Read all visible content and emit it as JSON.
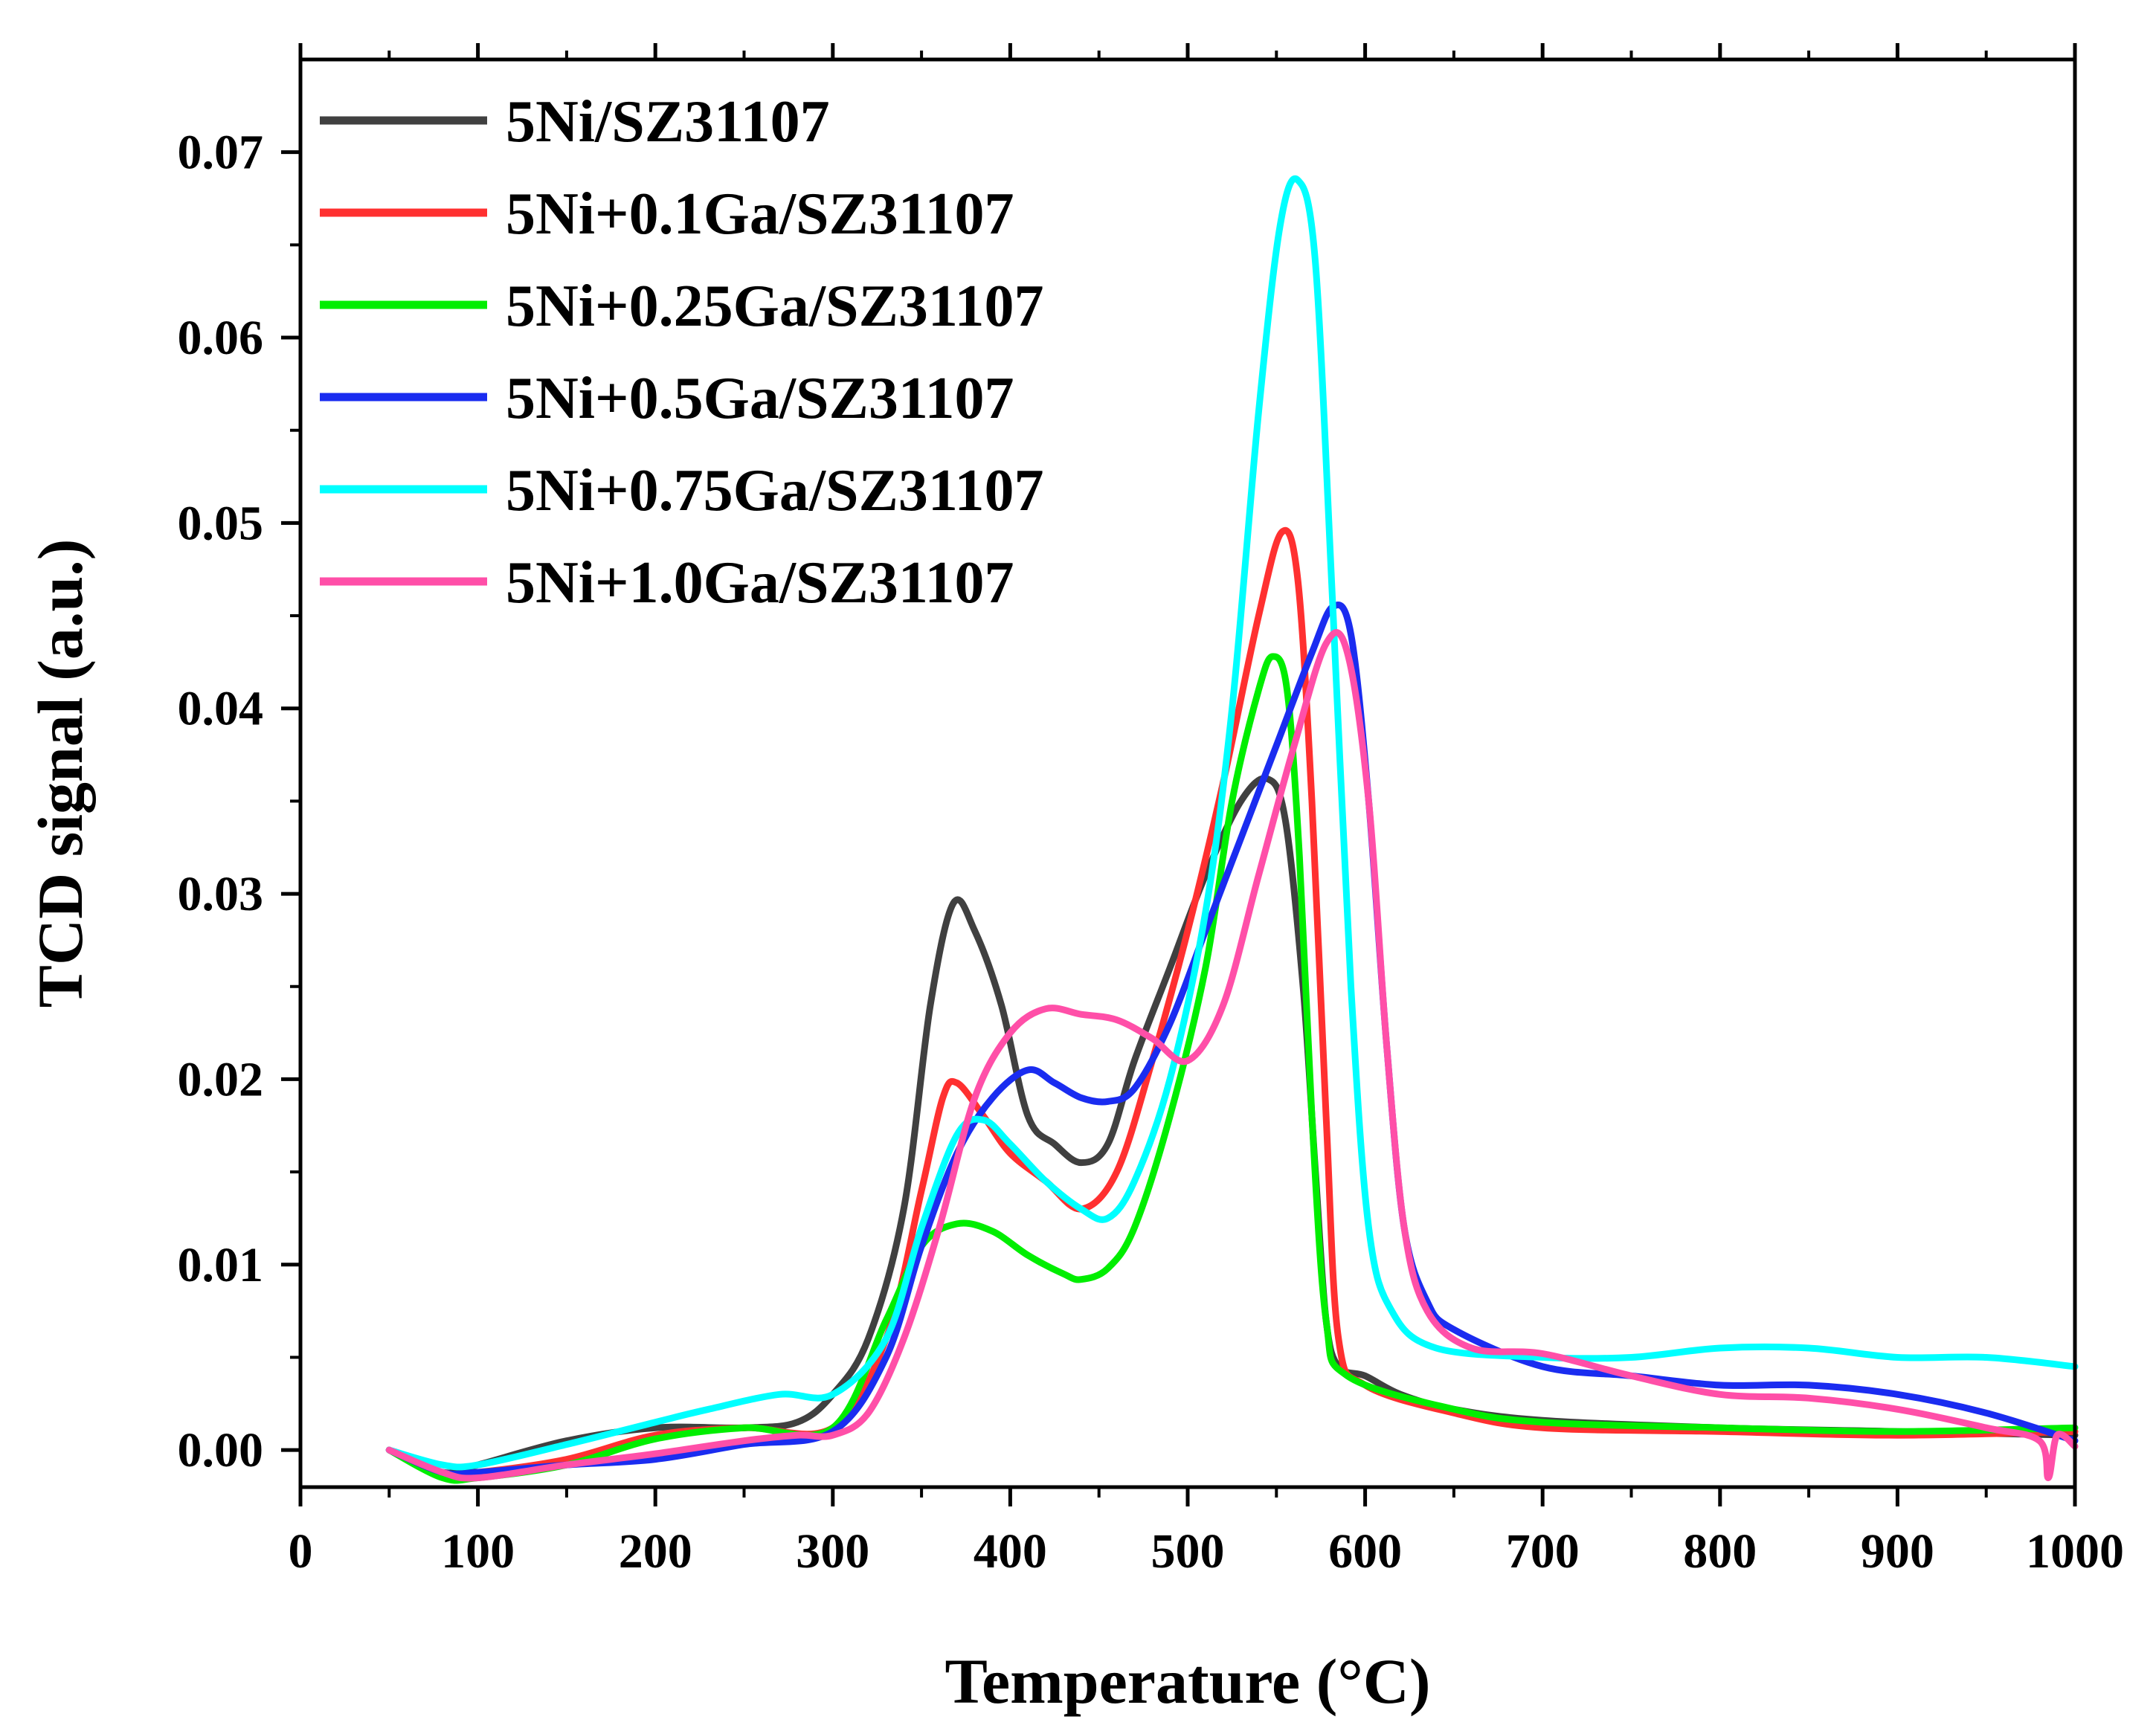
{
  "chart_data": {
    "type": "line",
    "title": "",
    "xlabel": "Temperature (°C)",
    "ylabel": "TCD signal (a.u.)",
    "xlim": [
      0,
      1000
    ],
    "ylim": [
      -0.002,
      0.075
    ],
    "xticks": [
      0,
      100,
      200,
      300,
      400,
      500,
      600,
      700,
      800,
      900,
      1000
    ],
    "xtick_labels": [
      "0",
      "100",
      "200",
      "300",
      "400",
      "500",
      "600",
      "700",
      "800",
      "900",
      "1000"
    ],
    "yticks": [
      0.0,
      0.01,
      0.02,
      0.03,
      0.04,
      0.05,
      0.06,
      0.07
    ],
    "ytick_labels": [
      "0.00",
      "0.01",
      "0.02",
      "0.03",
      "0.04",
      "0.05",
      "0.06",
      "0.07"
    ],
    "grid": false,
    "legend_position": "top-left",
    "series": [
      {
        "name": "5Ni/SZ31107",
        "color": "#404040",
        "points": [
          [
            50,
            0.0
          ],
          [
            80,
            -0.0012
          ],
          [
            100,
            -0.0008
          ],
          [
            150,
            0.0005
          ],
          [
            200,
            0.0012
          ],
          [
            250,
            0.0012
          ],
          [
            280,
            0.0015
          ],
          [
            300,
            0.003
          ],
          [
            320,
            0.006
          ],
          [
            340,
            0.013
          ],
          [
            355,
            0.024
          ],
          [
            368,
            0.0295
          ],
          [
            380,
            0.028
          ],
          [
            395,
            0.024
          ],
          [
            410,
            0.018
          ],
          [
            425,
            0.0165
          ],
          [
            440,
            0.0155
          ],
          [
            455,
            0.0165
          ],
          [
            470,
            0.021
          ],
          [
            490,
            0.026
          ],
          [
            510,
            0.031
          ],
          [
            530,
            0.035
          ],
          [
            545,
            0.0362
          ],
          [
            555,
            0.034
          ],
          [
            565,
            0.025
          ],
          [
            572,
            0.015
          ],
          [
            578,
            0.007
          ],
          [
            585,
            0.0045
          ],
          [
            600,
            0.004
          ],
          [
            620,
            0.003
          ],
          [
            650,
            0.0022
          ],
          [
            700,
            0.0016
          ],
          [
            800,
            0.0012
          ],
          [
            900,
            0.001
          ],
          [
            1000,
            0.0008
          ]
        ]
      },
      {
        "name": "5Ni+0.1Ga/SZ31107",
        "color": "#ff3030",
        "points": [
          [
            50,
            0.0
          ],
          [
            80,
            -0.0012
          ],
          [
            100,
            -0.0012
          ],
          [
            150,
            -0.0005
          ],
          [
            200,
            0.0008
          ],
          [
            250,
            0.0012
          ],
          [
            300,
            0.0012
          ],
          [
            330,
            0.006
          ],
          [
            350,
            0.014
          ],
          [
            362,
            0.019
          ],
          [
            370,
            0.0198
          ],
          [
            385,
            0.018
          ],
          [
            400,
            0.016
          ],
          [
            420,
            0.0145
          ],
          [
            440,
            0.013
          ],
          [
            460,
            0.015
          ],
          [
            480,
            0.021
          ],
          [
            500,
            0.028
          ],
          [
            520,
            0.036
          ],
          [
            540,
            0.045
          ],
          [
            553,
            0.0495
          ],
          [
            562,
            0.047
          ],
          [
            570,
            0.035
          ],
          [
            578,
            0.018
          ],
          [
            585,
            0.006
          ],
          [
            600,
            0.0035
          ],
          [
            650,
            0.002
          ],
          [
            700,
            0.0012
          ],
          [
            800,
            0.001
          ],
          [
            900,
            0.0008
          ],
          [
            1000,
            0.001
          ]
        ]
      },
      {
        "name": "5Ni+0.25Ga/SZ31107",
        "color": "#00ee00",
        "points": [
          [
            50,
            0.0
          ],
          [
            80,
            -0.0015
          ],
          [
            100,
            -0.0015
          ],
          [
            150,
            -0.0008
          ],
          [
            200,
            0.0006
          ],
          [
            250,
            0.0012
          ],
          [
            300,
            0.0012
          ],
          [
            330,
            0.007
          ],
          [
            350,
            0.011
          ],
          [
            370,
            0.0122
          ],
          [
            390,
            0.0118
          ],
          [
            410,
            0.0105
          ],
          [
            430,
            0.0095
          ],
          [
            440,
            0.0092
          ],
          [
            455,
            0.0098
          ],
          [
            470,
            0.012
          ],
          [
            490,
            0.018
          ],
          [
            510,
            0.026
          ],
          [
            525,
            0.035
          ],
          [
            540,
            0.041
          ],
          [
            548,
            0.0428
          ],
          [
            556,
            0.041
          ],
          [
            563,
            0.032
          ],
          [
            570,
            0.018
          ],
          [
            578,
            0.007
          ],
          [
            590,
            0.004
          ],
          [
            650,
            0.0022
          ],
          [
            700,
            0.0015
          ],
          [
            800,
            0.0012
          ],
          [
            900,
            0.001
          ],
          [
            1000,
            0.0012
          ]
        ]
      },
      {
        "name": "5Ni+0.5Ga/SZ31107",
        "color": "#1a2cf0",
        "points": [
          [
            50,
            0.0
          ],
          [
            80,
            -0.0012
          ],
          [
            100,
            -0.0012
          ],
          [
            150,
            -0.0008
          ],
          [
            200,
            -0.0005
          ],
          [
            250,
            0.0003
          ],
          [
            300,
            0.001
          ],
          [
            330,
            0.005
          ],
          [
            350,
            0.011
          ],
          [
            370,
            0.016
          ],
          [
            390,
            0.019
          ],
          [
            410,
            0.0205
          ],
          [
            425,
            0.0198
          ],
          [
            440,
            0.019
          ],
          [
            455,
            0.0188
          ],
          [
            470,
            0.0195
          ],
          [
            490,
            0.023
          ],
          [
            510,
            0.028
          ],
          [
            530,
            0.033
          ],
          [
            550,
            0.038
          ],
          [
            570,
            0.043
          ],
          [
            582,
            0.0455
          ],
          [
            592,
            0.044
          ],
          [
            602,
            0.035
          ],
          [
            612,
            0.022
          ],
          [
            622,
            0.012
          ],
          [
            635,
            0.008
          ],
          [
            650,
            0.0065
          ],
          [
            700,
            0.0045
          ],
          [
            750,
            0.004
          ],
          [
            800,
            0.0035
          ],
          [
            850,
            0.0035
          ],
          [
            900,
            0.003
          ],
          [
            950,
            0.002
          ],
          [
            1000,
            0.0005
          ]
        ]
      },
      {
        "name": "5Ni+0.75Ga/SZ31107",
        "color": "#00ffff",
        "points": [
          [
            50,
            0.0
          ],
          [
            80,
            -0.0008
          ],
          [
            100,
            -0.0008
          ],
          [
            150,
            0.0003
          ],
          [
            200,
            0.0015
          ],
          [
            230,
            0.0022
          ],
          [
            270,
            0.003
          ],
          [
            300,
            0.003
          ],
          [
            330,
            0.006
          ],
          [
            350,
            0.012
          ],
          [
            370,
            0.017
          ],
          [
            385,
            0.0178
          ],
          [
            400,
            0.0165
          ],
          [
            420,
            0.0145
          ],
          [
            440,
            0.013
          ],
          [
            455,
            0.0125
          ],
          [
            470,
            0.0145
          ],
          [
            490,
            0.02
          ],
          [
            510,
            0.029
          ],
          [
            525,
            0.04
          ],
          [
            540,
            0.056
          ],
          [
            552,
            0.066
          ],
          [
            562,
            0.0685
          ],
          [
            572,
            0.064
          ],
          [
            582,
            0.045
          ],
          [
            592,
            0.025
          ],
          [
            602,
            0.012
          ],
          [
            615,
            0.0075
          ],
          [
            640,
            0.0055
          ],
          [
            700,
            0.005
          ],
          [
            750,
            0.005
          ],
          [
            800,
            0.0055
          ],
          [
            850,
            0.0055
          ],
          [
            900,
            0.005
          ],
          [
            950,
            0.005
          ],
          [
            1000,
            0.0045
          ]
        ]
      },
      {
        "name": "5Ni+1.0Ga/SZ31107",
        "color": "#ff4fa8",
        "points": [
          [
            50,
            0.0
          ],
          [
            80,
            -0.0012
          ],
          [
            100,
            -0.0015
          ],
          [
            150,
            -0.0008
          ],
          [
            200,
            -0.0002
          ],
          [
            250,
            0.0005
          ],
          [
            280,
            0.0008
          ],
          [
            300,
            0.0008
          ],
          [
            320,
            0.002
          ],
          [
            340,
            0.006
          ],
          [
            360,
            0.012
          ],
          [
            380,
            0.019
          ],
          [
            400,
            0.0225
          ],
          [
            420,
            0.0238
          ],
          [
            440,
            0.0235
          ],
          [
            460,
            0.0232
          ],
          [
            480,
            0.0222
          ],
          [
            500,
            0.021
          ],
          [
            520,
            0.024
          ],
          [
            540,
            0.031
          ],
          [
            560,
            0.038
          ],
          [
            578,
            0.0435
          ],
          [
            590,
            0.043
          ],
          [
            602,
            0.035
          ],
          [
            612,
            0.022
          ],
          [
            622,
            0.012
          ],
          [
            635,
            0.0075
          ],
          [
            660,
            0.0055
          ],
          [
            700,
            0.0052
          ],
          [
            750,
            0.004
          ],
          [
            800,
            0.003
          ],
          [
            850,
            0.0028
          ],
          [
            900,
            0.0022
          ],
          [
            950,
            0.0012
          ],
          [
            980,
            0.0005
          ],
          [
            985,
            -0.0015
          ],
          [
            990,
            0.0008
          ],
          [
            1000,
            0.0002
          ]
        ]
      }
    ]
  }
}
